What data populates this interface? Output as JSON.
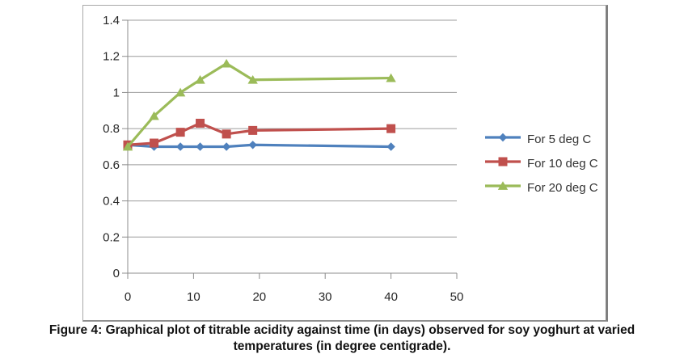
{
  "figure": {
    "caption_line1": "Figure 4: Graphical plot of titrable acidity against time (in days) observed for soy yoghurt at varied",
    "caption_line2": "temperatures (in degree centigrade)."
  },
  "chart_data": {
    "type": "line",
    "title": "",
    "xlabel": "",
    "ylabel": "",
    "x": [
      0,
      4,
      8,
      11,
      15,
      19,
      40
    ],
    "series": [
      {
        "name": "For 5 deg C",
        "marker": "diamond",
        "color": "#4F81BD",
        "values": [
          0.71,
          0.7,
          0.7,
          0.7,
          0.7,
          0.71,
          0.7
        ]
      },
      {
        "name": "For 10 deg C",
        "marker": "square",
        "color": "#C0504D",
        "values": [
          0.71,
          0.72,
          0.78,
          0.83,
          0.77,
          0.79,
          0.8
        ]
      },
      {
        "name": "For 20 deg C",
        "marker": "triangle-up",
        "color": "#9BBB59",
        "values": [
          0.7,
          0.87,
          1.0,
          1.07,
          1.16,
          1.07,
          1.08
        ]
      }
    ],
    "xlim": [
      0,
      50
    ],
    "ylim": [
      0,
      1.4
    ],
    "xtick_values": [
      0,
      10,
      20,
      30,
      40,
      50
    ],
    "xtick_labels": [
      "0",
      "10",
      "20",
      "30",
      "40",
      "50"
    ],
    "ytick_values": [
      0,
      0.2,
      0.4,
      0.6,
      0.8,
      1,
      1.2,
      1.4
    ],
    "ytick_labels": [
      "0",
      "0.2",
      "0.4",
      "0.6",
      "0.8",
      "1",
      "1.2",
      "1.4"
    ],
    "grid": "horizontal",
    "legend_position": "right-middle",
    "colors": {
      "gridline": "#9c9c9c",
      "axis": "#8c8c8c",
      "tick_text": "#262626",
      "frame_border": "#808080",
      "caption_text": "#111111"
    }
  }
}
